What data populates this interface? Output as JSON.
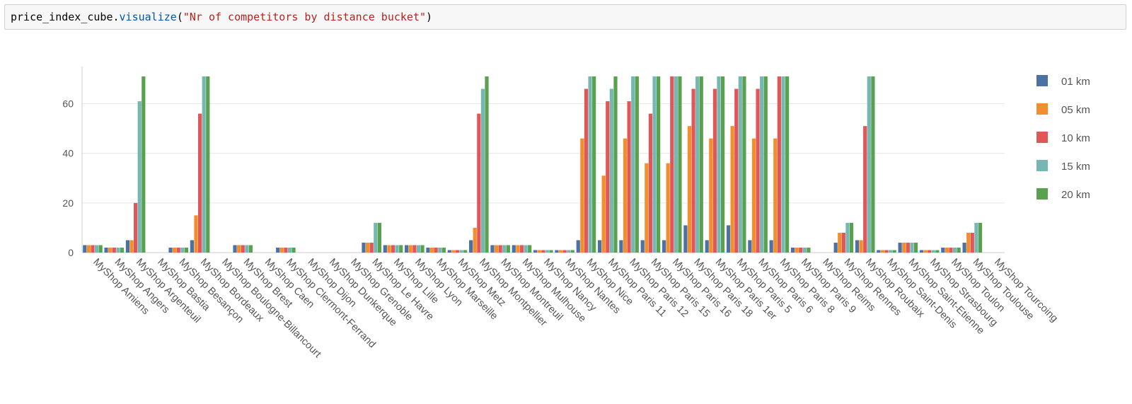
{
  "code_cell": {
    "object": "price_index_cube",
    "method": "visualize",
    "argument": "\"Nr of competitors by distance bucket\""
  },
  "chart_data": {
    "type": "bar",
    "categories": [
      "MyShop Amiens",
      "MyShop Angers",
      "MyShop Argenteuil",
      "MyShop Bastia",
      "MyShop Besancon",
      "MyShop Bordeaux",
      "MyShop Boulogne-Billancourt",
      "MyShop Brest",
      "MyShop Caen",
      "MyShop Clermont-Ferrand",
      "MyShop Dijon",
      "MyShop Dunkerque",
      "MyShop Grenoble",
      "MyShop Le Havre",
      "MyShop Lille",
      "MyShop Lyon",
      "MyShop Marseille",
      "MyShop Metz",
      "MyShop Montpellier",
      "MyShop Montreuil",
      "MyShop Mulhouse",
      "MyShop Nancy",
      "MyShop Nantes",
      "MyShop Nice",
      "MyShop Paris 11",
      "MyShop Paris 12",
      "MyShop Paris 15",
      "MyShop Paris 16",
      "MyShop Paris 18",
      "MyShop Paris 1er",
      "MyShop Paris 5",
      "MyShop Paris 6",
      "MyShop Paris 8",
      "MyShop Paris 9",
      "MyShop Reims",
      "MyShop Rennes",
      "MyShop Roubaix",
      "MyShop Saint-Denis",
      "MyShop Saint-Etienne",
      "MyShop Strasbourg",
      "MyShop Toulon",
      "MyShop Toulouse",
      "MyShop Tourcoing"
    ],
    "category_labels": [
      "MyShop Amiens",
      "MyShop Angers",
      "MyShop Argenteuil",
      "MyShop Bastia",
      "MyShop Besançon",
      "MyShop Bordeaux",
      "MyShop Boulogne-Billancourt",
      "MyShop Brest",
      "MyShop Caen",
      "MyShop Clermont-Ferrand",
      "MyShop Dijon",
      "MyShop Dunkerque",
      "MyShop Grenoble",
      "MyShop Le Havre",
      "MyShop Lille",
      "MyShop Lyon",
      "MyShop Marseille",
      "MyShop Metz",
      "MyShop Montpellier",
      "MyShop Montreuil",
      "MyShop Mulhouse",
      "MyShop Nancy",
      "MyShop Nantes",
      "MyShop Nice",
      "MyShop Paris 11",
      "MyShop Paris 12",
      "MyShop Paris 15",
      "MyShop Paris 16",
      "MyShop Paris 18",
      "MyShop Paris 1er",
      "MyShop Paris 5",
      "MyShop Paris 6",
      "MyShop Paris 8",
      "MyShop Paris 9",
      "MyShop Reims",
      "MyShop Rennes",
      "MyShop Roubaix",
      "MyShop Saint-Denis",
      "MyShop Saint-Etienne",
      "MyShop Strasbourg",
      "MyShop Toulon",
      "MyShop Toulouse",
      "MyShop Tourcoing"
    ],
    "series": [
      {
        "name": "01 km",
        "color": "#4c72a4",
        "values": [
          3,
          2,
          5,
          0,
          2,
          5,
          0,
          3,
          0,
          2,
          0,
          0,
          0,
          4,
          3,
          3,
          2,
          1,
          5,
          3,
          3,
          1,
          1,
          5,
          5,
          5,
          5,
          5,
          11,
          5,
          11,
          5,
          5,
          2,
          0,
          4,
          5,
          1,
          4,
          1,
          2,
          4,
          0
        ]
      },
      {
        "name": "05 km",
        "color": "#f28e2b",
        "values": [
          3,
          2,
          5,
          0,
          2,
          15,
          0,
          3,
          0,
          2,
          0,
          0,
          0,
          4,
          3,
          3,
          2,
          1,
          10,
          3,
          3,
          1,
          1,
          46,
          31,
          46,
          36,
          36,
          51,
          46,
          51,
          46,
          46,
          2,
          0,
          8,
          5,
          1,
          4,
          1,
          2,
          8,
          0
        ]
      },
      {
        "name": "10 km",
        "color": "#e15759",
        "values": [
          3,
          2,
          20,
          0,
          2,
          56,
          0,
          3,
          0,
          2,
          0,
          0,
          0,
          4,
          3,
          3,
          2,
          1,
          56,
          3,
          3,
          1,
          1,
          66,
          61,
          61,
          56,
          71,
          66,
          66,
          66,
          66,
          71,
          2,
          0,
          8,
          51,
          1,
          4,
          1,
          2,
          8,
          0
        ]
      },
      {
        "name": "15 km",
        "color": "#76b7b2",
        "values": [
          3,
          2,
          61,
          0,
          2,
          71,
          0,
          3,
          0,
          2,
          0,
          0,
          0,
          12,
          3,
          3,
          2,
          1,
          66,
          3,
          3,
          1,
          1,
          71,
          66,
          71,
          71,
          71,
          71,
          71,
          71,
          71,
          71,
          2,
          0,
          12,
          71,
          1,
          4,
          1,
          2,
          12,
          0
        ]
      },
      {
        "name": "20 km",
        "color": "#59a14f",
        "values": [
          3,
          2,
          71,
          0,
          2,
          71,
          0,
          3,
          0,
          2,
          0,
          0,
          0,
          12,
          3,
          3,
          2,
          1,
          71,
          3,
          3,
          1,
          1,
          71,
          71,
          71,
          71,
          71,
          71,
          71,
          71,
          71,
          71,
          2,
          0,
          12,
          71,
          1,
          4,
          1,
          2,
          12,
          0
        ]
      }
    ],
    "y_ticks": [
      "0",
      "20",
      "40",
      "60"
    ],
    "ylim": [
      0,
      75
    ],
    "grid": true,
    "legend_position": "right"
  }
}
